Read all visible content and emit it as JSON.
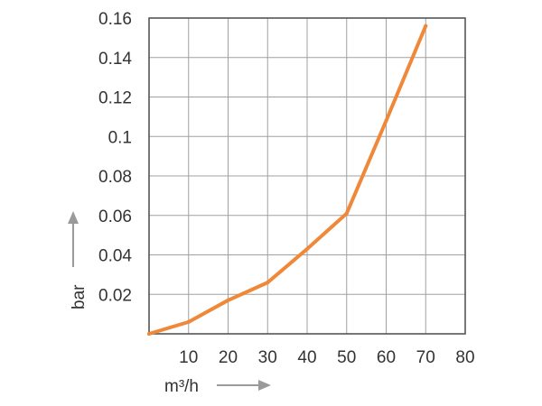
{
  "chart_data": {
    "type": "line",
    "x": [
      0,
      10,
      20,
      30,
      40,
      50,
      60,
      70
    ],
    "series": [
      {
        "values": [
          0,
          0.006,
          0.017,
          0.026,
          0.043,
          0.061,
          0.108,
          0.156
        ],
        "color": "#f0883a"
      }
    ],
    "xlabel": "m³/h",
    "ylabel": "bar",
    "xlim": [
      0,
      80
    ],
    "ylim": [
      0,
      0.16
    ],
    "x_ticks": [
      "10",
      "20",
      "30",
      "40",
      "50",
      "60",
      "70",
      "80"
    ],
    "y_ticks": [
      "0.02",
      "0.04",
      "0.06",
      "0.08",
      "0.1",
      "0.12",
      "0.14",
      "0.16"
    ],
    "grid": true,
    "legend": "none",
    "colors": {
      "line": "#f0883a",
      "grid": "#a0a0a0",
      "frame": "#555555",
      "arrow": "#9a9a9a"
    }
  }
}
